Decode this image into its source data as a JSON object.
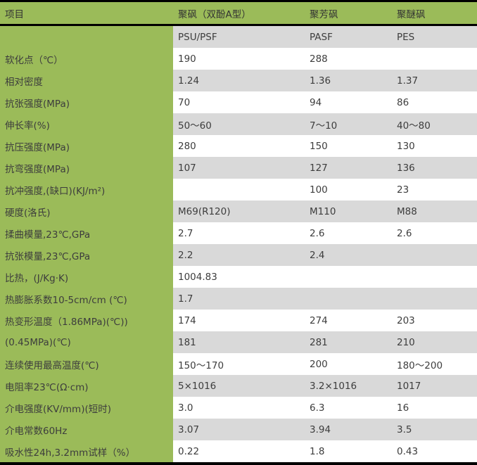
{
  "header": [
    "项目",
    "聚砜（双酚A型）",
    "聚芳砜",
    "聚醚砜"
  ],
  "rows": [
    [
      "",
      "PSU/PSF",
      "PASF",
      "PES"
    ],
    [
      "软化点（℃）",
      "190",
      "288",
      ""
    ],
    [
      "相对密度",
      "1.24",
      "1.36",
      "1.37"
    ],
    [
      "抗张强度(MPa)",
      "70",
      "94",
      "86"
    ],
    [
      "伸长率(%)",
      "50～60",
      "7～10",
      "40～80"
    ],
    [
      "抗压强度(MPa)",
      "280",
      "150",
      "130"
    ],
    [
      "抗弯强度(MPa)",
      "107",
      "127",
      "136"
    ],
    [
      "抗冲强度,(缺口)(KJ/m²)",
      "",
      "100",
      "23"
    ],
    [
      "硬度(洛氏)",
      "M69(R120)",
      "M110",
      "M88"
    ],
    [
      "揉曲模量,23℃,GPa",
      "2.7",
      "2.6",
      "2.6"
    ],
    [
      "抗张模量,23℃,GPa",
      "2.2",
      "2.4",
      ""
    ],
    [
      "比热，(J/Kg·K)",
      "1004.83",
      "",
      ""
    ],
    [
      "热膨胀系数10-5cm/cm (℃)",
      "1.7",
      "",
      ""
    ],
    [
      "热变形温度（1.86MPa)(℃))",
      "174",
      "274",
      "203"
    ],
    [
      "(0.45MPa)(℃)",
      "181",
      "281",
      "210"
    ],
    [
      "连续使用最高温度(℃)",
      "150～170",
      "200",
      "180～200"
    ],
    [
      "电阻率23℃(Ω·cm)",
      "5×1016",
      "3.2×1016",
      "1017"
    ],
    [
      "介电强度(KV/mm)(短时)",
      "3.0",
      "6.3",
      "16"
    ],
    [
      "介电常数60Hz",
      "3.07",
      "3.94",
      "3.5"
    ],
    [
      "吸水性24h,3.2mm试样（%）",
      "0.22",
      "1.8",
      "0.43"
    ]
  ],
  "colors": {
    "label_column": "#9bbb59",
    "stripe": "#d9d9d9",
    "border": "#000000"
  }
}
